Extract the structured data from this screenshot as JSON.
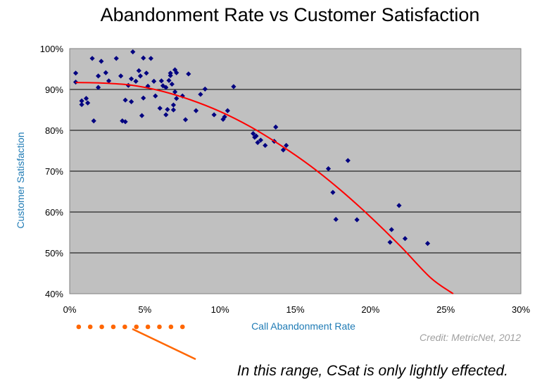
{
  "colors": {
    "plot_bg": "#c0c0c0",
    "gridline": "#000000",
    "point": "#000080",
    "trend": "#ff0000",
    "annotation": "#ff6600",
    "axis_label": "#1f7bb5",
    "credit": "#a0a0a0"
  },
  "chart_data": {
    "type": "scatter",
    "title": "Abandonment Rate vs Customer Satisfaction",
    "xlabel": "Call Abandonment Rate",
    "ylabel": "Customer Satisfaction",
    "xlim": [
      0,
      30
    ],
    "ylim": [
      40,
      100
    ],
    "x_ticks": [
      "0%",
      "5%",
      "10%",
      "15%",
      "20%",
      "25%",
      "30%"
    ],
    "y_ticks": [
      "40%",
      "50%",
      "60%",
      "70%",
      "80%",
      "90%",
      "100%"
    ],
    "grid": true,
    "legend": "none",
    "series": [
      {
        "type": "scatter",
        "points": [
          [
            0.4,
            94
          ],
          [
            0.4,
            91.8
          ],
          [
            0.8,
            87.2
          ],
          [
            0.8,
            86.3
          ],
          [
            1.1,
            87.8
          ],
          [
            1.2,
            86.7
          ],
          [
            1.5,
            97.6
          ],
          [
            1.6,
            82.3
          ],
          [
            1.9,
            93.3
          ],
          [
            1.9,
            90.5
          ],
          [
            2.1,
            96.9
          ],
          [
            2.4,
            94.1
          ],
          [
            2.6,
            92.1
          ],
          [
            3.1,
            97.6
          ],
          [
            3.4,
            93.3
          ],
          [
            3.5,
            82.3
          ],
          [
            3.7,
            87.4
          ],
          [
            3.7,
            82.1
          ],
          [
            3.9,
            91
          ],
          [
            4.1,
            92.6
          ],
          [
            4.1,
            87
          ],
          [
            4.2,
            99.2
          ],
          [
            4.4,
            92
          ],
          [
            4.6,
            94.6
          ],
          [
            4.7,
            93.3
          ],
          [
            4.8,
            83.6
          ],
          [
            4.9,
            87.9
          ],
          [
            4.9,
            97.7
          ],
          [
            5.1,
            94
          ],
          [
            5.2,
            90.8
          ],
          [
            5.4,
            97.6
          ],
          [
            5.6,
            92
          ],
          [
            5.7,
            88.4
          ],
          [
            6.0,
            85.4
          ],
          [
            6.1,
            92.1
          ],
          [
            6.2,
            90.9
          ],
          [
            6.4,
            90.5
          ],
          [
            6.4,
            83.8
          ],
          [
            6.5,
            85.1
          ],
          [
            6.6,
            92.2
          ],
          [
            6.7,
            94
          ],
          [
            6.7,
            93.4
          ],
          [
            6.8,
            91.3
          ],
          [
            6.9,
            86.2
          ],
          [
            6.9,
            85
          ],
          [
            7.0,
            94.8
          ],
          [
            7.0,
            89.4
          ],
          [
            7.1,
            87.8
          ],
          [
            7.1,
            94.1
          ],
          [
            7.5,
            88.4
          ],
          [
            7.7,
            82.6
          ],
          [
            7.9,
            93.8
          ],
          [
            8.4,
            84.8
          ],
          [
            8.7,
            88.8
          ],
          [
            9.0,
            90.1
          ],
          [
            9.6,
            83.8
          ],
          [
            10.2,
            82.7
          ],
          [
            10.3,
            83.3
          ],
          [
            10.5,
            84.8
          ],
          [
            10.9,
            90.7
          ],
          [
            12.2,
            79.2
          ],
          [
            12.3,
            78.3
          ],
          [
            12.4,
            78.6
          ],
          [
            12.5,
            77
          ],
          [
            12.7,
            77.6
          ],
          [
            13.0,
            76.3
          ],
          [
            13.6,
            77.3
          ],
          [
            13.7,
            80.8
          ],
          [
            14.2,
            75.2
          ],
          [
            14.4,
            76.3
          ],
          [
            17.2,
            70.6
          ],
          [
            17.5,
            64.8
          ],
          [
            17.7,
            58.2
          ],
          [
            18.5,
            72.6
          ],
          [
            19.1,
            58.1
          ],
          [
            21.3,
            52.6
          ],
          [
            21.4,
            55.7
          ],
          [
            21.9,
            61.6
          ],
          [
            22.3,
            53.5
          ],
          [
            23.8,
            52.3
          ]
        ]
      },
      {
        "type": "line",
        "points": [
          [
            0.4,
            91.7
          ],
          [
            2,
            91.6
          ],
          [
            4,
            91.1
          ],
          [
            6,
            89.7
          ],
          [
            8,
            87.5
          ],
          [
            10,
            84.6
          ],
          [
            12,
            80.9
          ],
          [
            14,
            76.4
          ],
          [
            16,
            71.3
          ],
          [
            18,
            65.4
          ],
          [
            20,
            58.8
          ],
          [
            22,
            51.6
          ],
          [
            24,
            43.9
          ],
          [
            25.5,
            40
          ]
        ]
      }
    ]
  },
  "credit_text": "Credit: MetricNet, 2012",
  "annotation": {
    "text": "In this range, CSat is only lightly effected.",
    "x_range": [
      0.6,
      7.5
    ]
  }
}
